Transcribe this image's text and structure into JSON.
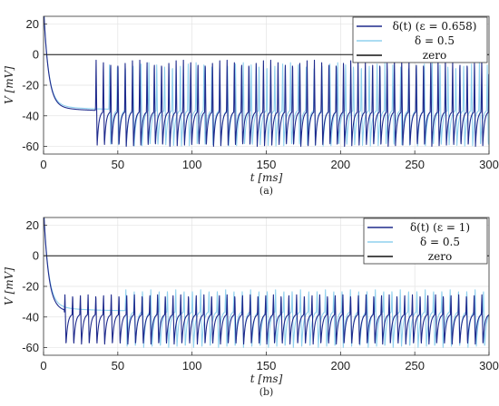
{
  "chart_data": [
    {
      "type": "line",
      "caption": "(a)",
      "xlabel": "t [ms]",
      "ylabel": "V [mV]",
      "xlim": [
        0,
        300
      ],
      "ylim": [
        -65,
        25
      ],
      "xticks": [
        0,
        50,
        100,
        150,
        200,
        250,
        300
      ],
      "yticks": [
        20,
        0,
        -20,
        -40,
        -60
      ],
      "grid": true,
      "legend_position": "top-right",
      "series": [
        {
          "name": "δ(t) (ε = 0.658)",
          "color": "#1f2a8c",
          "start_ms": 35,
          "isi_ms": 4.9,
          "rest_mV": -37,
          "trough_mV": -60,
          "peak_mV": -3
        },
        {
          "name": "δ = 0.5",
          "color": "#8fd0ee",
          "start_ms": 44,
          "isi_ms": 5.3,
          "rest_mV": -36,
          "trough_mV": -60,
          "peak_mV": -5
        },
        {
          "name": "zero",
          "color": "#111111",
          "value": 0
        }
      ],
      "legend_labels": [
        "δ(t) (ε = 0.658)",
        "δ = 0.5",
        "zero"
      ]
    },
    {
      "type": "line",
      "caption": "(b)",
      "xlabel": "t [ms]",
      "ylabel": "V [mV]",
      "xlim": [
        0,
        300
      ],
      "ylim": [
        -65,
        25
      ],
      "xticks": [
        0,
        50,
        100,
        150,
        200,
        250,
        300
      ],
      "yticks": [
        20,
        0,
        -20,
        -40,
        -60
      ],
      "grid": true,
      "legend_position": "top-right",
      "series": [
        {
          "name": "δ(t) (ε = 1)",
          "color": "#1f2a8c",
          "start_ms": 14,
          "isi_ms": 5.2,
          "rest_mV": -38,
          "trough_mV": -58,
          "peak_mV": -25
        },
        {
          "name": "δ = 0.5",
          "color": "#8fd0ee",
          "start_ms": 55,
          "isi_ms": 5.6,
          "rest_mV": -36,
          "trough_mV": -60,
          "peak_mV": -22
        },
        {
          "name": "zero",
          "color": "#111111",
          "value": 0
        }
      ],
      "legend_labels": [
        "δ(t) (ε = 1)",
        "δ = 0.5",
        "zero"
      ]
    }
  ]
}
